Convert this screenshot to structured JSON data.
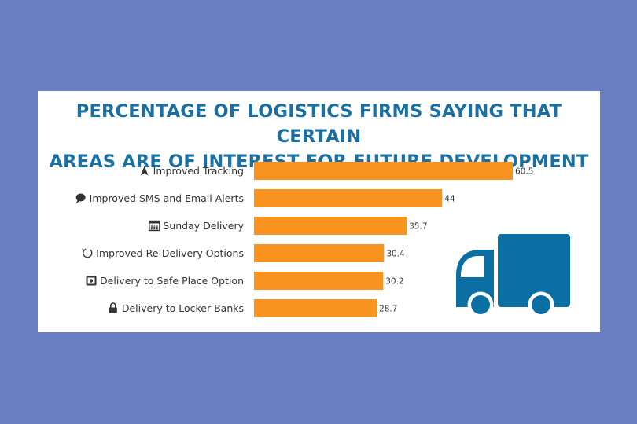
{
  "title_line1": "PERCENTAGE OF LOGISTICS FIRMS SAYING THAT CERTAIN",
  "title_line2": "AREAS ARE OF INTEREST FOR FUTURE DEVELOPMENT",
  "colors": {
    "background": "#6a7fc1",
    "title": "#1a6fa3",
    "bar": "#f7931e",
    "truck": "#0b6fa4"
  },
  "chart_data": {
    "type": "bar",
    "orientation": "horizontal",
    "title": "PERCENTAGE OF LOGISTICS FIRMS SAYING THAT CERTAIN AREAS ARE OF INTEREST FOR FUTURE DEVELOPMENT",
    "categories": [
      "Improved Tracking",
      "Improved SMS and Email Alerts",
      "Sunday Delivery",
      "Improved Re-Delivery Options",
      "Delivery to Safe Place Option",
      "Delivery to Locker Banks"
    ],
    "icons": [
      "tracking-icon",
      "chat-bubble-icon",
      "calendar-icon",
      "refresh-icon",
      "safe-icon",
      "lock-icon"
    ],
    "values": [
      60.5,
      44,
      35.7,
      30.4,
      30.2,
      28.7
    ],
    "value_labels": [
      "60.5",
      "44",
      "35.7",
      "30.4",
      "30.2",
      "28.7"
    ],
    "xlim": [
      0,
      60.5
    ],
    "grid": false,
    "legend": "none"
  },
  "decoration": "truck-icon"
}
